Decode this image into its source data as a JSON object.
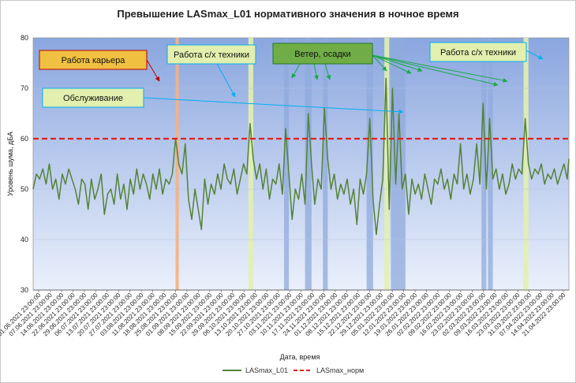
{
  "chart_data": {
    "type": "line",
    "title": "Превышение LASmax_L01 нормативного значения в ночное время",
    "xlabel": "Дата, время",
    "ylabel": "Уровень шума, дБА",
    "ylim": [
      30,
      80
    ],
    "yticks": [
      30,
      40,
      50,
      60,
      70,
      80
    ],
    "x_range": [
      "2021-06-01",
      "2022-04-28"
    ],
    "grid": true,
    "legend_position": "bottom",
    "x_ticks": [
      "01.06.2021 23:00:00",
      "07.06.2021 23:00:00",
      "14.06.2021 23:00:00",
      "22.06.2021 23:00:00",
      "29.06.2021 23:00:00",
      "06.07.2021 23:00:00",
      "13.07.2021 23:00:00",
      "20.07.2021 23:00:00",
      "27.07.2021 23:00:00",
      "03.08.2021 23:00:00",
      "11.08.2021 23:00:00",
      "18.08.2021 23:00:00",
      "25.08.2021 23:00:00",
      "01.09.2021 23:00:00",
      "08.09.2021 23:00:00",
      "15.09.2021 23:00:00",
      "22.09.2021 23:00:00",
      "29.09.2021 23:00:00",
      "06.10.2021 23:00:00",
      "13.10.2021 23:00:00",
      "20.10.2021 23:00:00",
      "27.10.2021 23:00:00",
      "03.11.2021 23:00:00",
      "10.11.2021 23:00:00",
      "17.11.2021 23:00:00",
      "24.11.2021 23:00:00",
      "01.12.2021 23:00:00",
      "08.12.2021 23:00:00",
      "15.12.2021 23:00:00",
      "22.12.2021 23:00:00",
      "29.12.2021 23:00:00",
      "05.01.2022 23:00:00",
      "12.01.2022 23:00:00",
      "19.01.2022 23:00:00",
      "26.01.2022 23:00:00",
      "02.02.2022 23:00:00",
      "09.02.2022 23:00:00",
      "16.02.2022 23:00:00",
      "23.02.2022 23:00:00",
      "02.03.2022 23:00:00",
      "09.03.2022 23:00:00",
      "16.03.2022 23:00:00",
      "23.03.2022 23:00:00",
      "31.03.2022 23:00:00",
      "07.04.2022 23:00:00",
      "14.04.2022 23:00:00",
      "21.04.2022 23:00:00"
    ],
    "series": [
      {
        "name": "LASmax_L01",
        "color": "#548235",
        "style": "solid",
        "points": [
          [
            "2021-06-01",
            50
          ],
          [
            "2021-06-03",
            53
          ],
          [
            "2021-06-05",
            52
          ],
          [
            "2021-06-07",
            54
          ],
          [
            "2021-06-09",
            51
          ],
          [
            "2021-06-11",
            55
          ],
          [
            "2021-06-13",
            50
          ],
          [
            "2021-06-15",
            52
          ],
          [
            "2021-06-17",
            48
          ],
          [
            "2021-06-19",
            53
          ],
          [
            "2021-06-21",
            51
          ],
          [
            "2021-06-23",
            54
          ],
          [
            "2021-06-25",
            52
          ],
          [
            "2021-06-27",
            50
          ],
          [
            "2021-06-29",
            47
          ],
          [
            "2021-07-01",
            52
          ],
          [
            "2021-07-03",
            51
          ],
          [
            "2021-07-05",
            46
          ],
          [
            "2021-07-07",
            52
          ],
          [
            "2021-07-09",
            48
          ],
          [
            "2021-07-11",
            50
          ],
          [
            "2021-07-13",
            53
          ],
          [
            "2021-07-15",
            45
          ],
          [
            "2021-07-17",
            49
          ],
          [
            "2021-07-19",
            50
          ],
          [
            "2021-07-21",
            47
          ],
          [
            "2021-07-23",
            53
          ],
          [
            "2021-07-25",
            48
          ],
          [
            "2021-07-27",
            51
          ],
          [
            "2021-07-29",
            46
          ],
          [
            "2021-07-31",
            52
          ],
          [
            "2021-08-02",
            49
          ],
          [
            "2021-08-04",
            54
          ],
          [
            "2021-08-06",
            50
          ],
          [
            "2021-08-08",
            53
          ],
          [
            "2021-08-10",
            51
          ],
          [
            "2021-08-12",
            48
          ],
          [
            "2021-08-14",
            53
          ],
          [
            "2021-08-16",
            50
          ],
          [
            "2021-08-18",
            54
          ],
          [
            "2021-08-20",
            49
          ],
          [
            "2021-08-22",
            52
          ],
          [
            "2021-08-24",
            51
          ],
          [
            "2021-08-26",
            53
          ],
          [
            "2021-08-28",
            60
          ],
          [
            "2021-08-30",
            55
          ],
          [
            "2021-09-01",
            53
          ],
          [
            "2021-09-03",
            59
          ],
          [
            "2021-09-05",
            48
          ],
          [
            "2021-09-07",
            44
          ],
          [
            "2021-09-09",
            50
          ],
          [
            "2021-09-11",
            46
          ],
          [
            "2021-09-13",
            42
          ],
          [
            "2021-09-15",
            52
          ],
          [
            "2021-09-17",
            47
          ],
          [
            "2021-09-19",
            51
          ],
          [
            "2021-09-21",
            49
          ],
          [
            "2021-09-23",
            53
          ],
          [
            "2021-09-25",
            50
          ],
          [
            "2021-09-27",
            55
          ],
          [
            "2021-09-29",
            52
          ],
          [
            "2021-10-01",
            51
          ],
          [
            "2021-10-03",
            54
          ],
          [
            "2021-10-05",
            49
          ],
          [
            "2021-10-07",
            52
          ],
          [
            "2021-10-09",
            55
          ],
          [
            "2021-10-11",
            53
          ],
          [
            "2021-10-13",
            63
          ],
          [
            "2021-10-15",
            56
          ],
          [
            "2021-10-17",
            52
          ],
          [
            "2021-10-19",
            55
          ],
          [
            "2021-10-21",
            50
          ],
          [
            "2021-10-23",
            54
          ],
          [
            "2021-10-25",
            48
          ],
          [
            "2021-10-27",
            52
          ],
          [
            "2021-10-29",
            51
          ],
          [
            "2021-10-31",
            55
          ],
          [
            "2021-11-02",
            49
          ],
          [
            "2021-11-04",
            62
          ],
          [
            "2021-11-06",
            53
          ],
          [
            "2021-11-08",
            44
          ],
          [
            "2021-11-10",
            50
          ],
          [
            "2021-11-12",
            48
          ],
          [
            "2021-11-14",
            53
          ],
          [
            "2021-11-16",
            47
          ],
          [
            "2021-11-18",
            65
          ],
          [
            "2021-11-20",
            55
          ],
          [
            "2021-11-22",
            47
          ],
          [
            "2021-11-24",
            52
          ],
          [
            "2021-11-26",
            50
          ],
          [
            "2021-11-28",
            66
          ],
          [
            "2021-11-30",
            56
          ],
          [
            "2021-12-02",
            50
          ],
          [
            "2021-12-04",
            53
          ],
          [
            "2021-12-06",
            48
          ],
          [
            "2021-12-08",
            51
          ],
          [
            "2021-12-10",
            49
          ],
          [
            "2021-12-12",
            52
          ],
          [
            "2021-12-14",
            47
          ],
          [
            "2021-12-16",
            50
          ],
          [
            "2021-12-18",
            43
          ],
          [
            "2021-12-20",
            52
          ],
          [
            "2021-12-22",
            49
          ],
          [
            "2021-12-24",
            53
          ],
          [
            "2021-12-26",
            64
          ],
          [
            "2021-12-28",
            48
          ],
          [
            "2021-12-30",
            41
          ],
          [
            "2022-01-01",
            47
          ],
          [
            "2022-01-03",
            52
          ],
          [
            "2022-01-05",
            72
          ],
          [
            "2022-01-07",
            46
          ],
          [
            "2022-01-09",
            70
          ],
          [
            "2022-01-11",
            51
          ],
          [
            "2022-01-13",
            65
          ],
          [
            "2022-01-15",
            50
          ],
          [
            "2022-01-17",
            53
          ],
          [
            "2022-01-19",
            45
          ],
          [
            "2022-01-21",
            52
          ],
          [
            "2022-01-23",
            49
          ],
          [
            "2022-01-25",
            51
          ],
          [
            "2022-01-27",
            48
          ],
          [
            "2022-01-29",
            53
          ],
          [
            "2022-01-31",
            50
          ],
          [
            "2022-02-02",
            47
          ],
          [
            "2022-02-04",
            52
          ],
          [
            "2022-02-06",
            51
          ],
          [
            "2022-02-08",
            54
          ],
          [
            "2022-02-10",
            50
          ],
          [
            "2022-02-12",
            52
          ],
          [
            "2022-02-14",
            48
          ],
          [
            "2022-02-16",
            53
          ],
          [
            "2022-02-18",
            51
          ],
          [
            "2022-02-20",
            59
          ],
          [
            "2022-02-22",
            50
          ],
          [
            "2022-02-24",
            53
          ],
          [
            "2022-02-26",
            49
          ],
          [
            "2022-02-28",
            52
          ],
          [
            "2022-03-02",
            59
          ],
          [
            "2022-03-04",
            51
          ],
          [
            "2022-03-06",
            67
          ],
          [
            "2022-03-08",
            50
          ],
          [
            "2022-03-10",
            64
          ],
          [
            "2022-03-12",
            52
          ],
          [
            "2022-03-14",
            54
          ],
          [
            "2022-03-16",
            50
          ],
          [
            "2022-03-18",
            53
          ],
          [
            "2022-03-20",
            49
          ],
          [
            "2022-03-22",
            51
          ],
          [
            "2022-03-24",
            55
          ],
          [
            "2022-03-26",
            52
          ],
          [
            "2022-03-28",
            54
          ],
          [
            "2022-03-30",
            53
          ],
          [
            "2022-04-01",
            64
          ],
          [
            "2022-04-03",
            55
          ],
          [
            "2022-04-05",
            52
          ],
          [
            "2022-04-07",
            54
          ],
          [
            "2022-04-09",
            53
          ],
          [
            "2022-04-11",
            55
          ],
          [
            "2022-04-13",
            51
          ],
          [
            "2022-04-15",
            53
          ],
          [
            "2022-04-17",
            52
          ],
          [
            "2022-04-19",
            54
          ],
          [
            "2022-04-21",
            51
          ],
          [
            "2022-04-23",
            53
          ],
          [
            "2022-04-25",
            55
          ],
          [
            "2022-04-27",
            52
          ],
          [
            "2022-04-28",
            56
          ]
        ]
      },
      {
        "name": "LASmax_норм",
        "color": "#e02020",
        "style": "dashed",
        "points": [
          [
            "2021-06-01",
            60
          ],
          [
            "2022-04-28",
            60
          ]
        ]
      }
    ],
    "bands": [
      {
        "kind": "quarry",
        "from": "2021-08-28",
        "to": "2021-08-29",
        "color": "#f4b183"
      },
      {
        "kind": "agri",
        "from": "2021-10-12",
        "to": "2021-10-14",
        "color": "#e2efae"
      },
      {
        "kind": "wind",
        "from": "2021-11-03",
        "to": "2021-11-05",
        "color": "#8faadc"
      },
      {
        "kind": "wind",
        "from": "2021-11-16",
        "to": "2021-11-19",
        "color": "#8faadc"
      },
      {
        "kind": "wind",
        "from": "2021-11-27",
        "to": "2021-11-29",
        "color": "#8faadc"
      },
      {
        "kind": "wind",
        "from": "2021-12-24",
        "to": "2021-12-27",
        "color": "#8faadc"
      },
      {
        "kind": "agri",
        "from": "2022-01-04",
        "to": "2022-01-06",
        "color": "#e2efae"
      },
      {
        "kind": "wind",
        "from": "2022-01-08",
        "to": "2022-01-16",
        "color": "#8faadc"
      },
      {
        "kind": "wind",
        "from": "2022-03-05",
        "to": "2022-03-07",
        "color": "#8faadc"
      },
      {
        "kind": "wind",
        "from": "2022-03-09",
        "to": "2022-03-11",
        "color": "#8faadc"
      },
      {
        "kind": "agri",
        "from": "2022-03-31",
        "to": "2022-04-02",
        "color": "#e2efae"
      }
    ],
    "annotations": [
      {
        "text": "Работа карьера",
        "fill": "#f0c040",
        "border": "#c00000",
        "anchor": "2021-08-28"
      },
      {
        "text": "Работа с/х техники",
        "fill": "#e2efae",
        "border": "#00b0f0",
        "anchor": "2021-10-13"
      },
      {
        "text": "Ветер, осадки",
        "fill": "#70ad47",
        "border": "#1f7a1f",
        "anchor": "2021-11-04"
      },
      {
        "text": "Обслуживание",
        "fill": "#e2efae",
        "border": "#00b0f0",
        "anchor": "2022-01-05"
      },
      {
        "text": "Работа с/х техники",
        "fill": "#e2efae",
        "border": "#00b0f0",
        "anchor": "2022-04-01"
      }
    ]
  }
}
